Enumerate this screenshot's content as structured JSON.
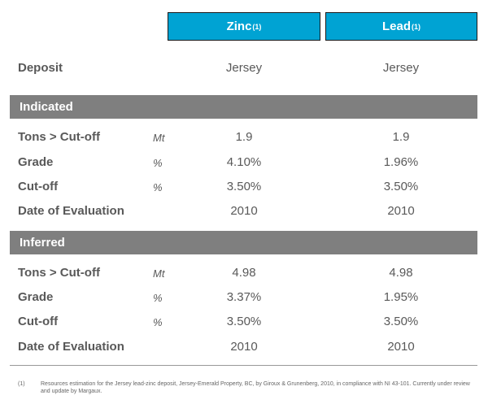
{
  "headers": {
    "zinc": "Zinc",
    "lead": "Lead",
    "sup": "(1)"
  },
  "deposit": {
    "label": "Deposit",
    "zinc": "Jersey",
    "lead": "Jersey"
  },
  "sections": [
    {
      "title": "Indicated",
      "rows": [
        {
          "label": "Tons > Cut-off",
          "unit": "Mt",
          "zinc": "1.9",
          "lead": "1.9"
        },
        {
          "label": "Grade",
          "unit": "%",
          "zinc": "4.10%",
          "lead": "1.96%"
        },
        {
          "label": "Cut-off",
          "unit": "%",
          "zinc": "3.50%",
          "lead": "3.50%"
        },
        {
          "label": "Date of Evaluation",
          "unit": "",
          "zinc": "2010",
          "lead": "2010"
        }
      ]
    },
    {
      "title": "Inferred",
      "rows": [
        {
          "label": "Tons > Cut-off",
          "unit": "Mt",
          "zinc": "4.98",
          "lead": "4.98"
        },
        {
          "label": "Grade",
          "unit": "%",
          "zinc": "3.37%",
          "lead": "1.95%"
        },
        {
          "label": "Cut-off",
          "unit": "%",
          "zinc": "3.50%",
          "lead": "3.50%"
        },
        {
          "label": "Date of Evaluation",
          "unit": "",
          "zinc": "2010",
          "lead": "2010"
        }
      ]
    }
  ],
  "footnote": {
    "marker": "(1)",
    "text": "Resources estimation for the Jersey lead-zinc deposit, Jersey-Emerald Property, BC, by Giroux & Grunenberg, 2010, in compliance with NI 43-101. Currently under review and update by Margaux."
  }
}
